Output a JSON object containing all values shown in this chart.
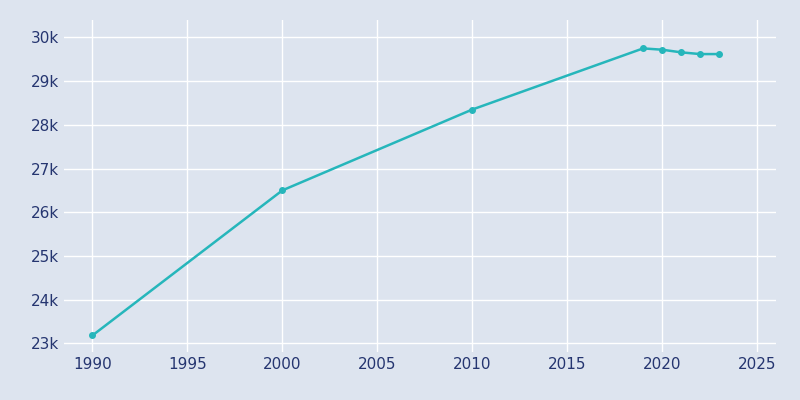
{
  "years": [
    1990,
    2000,
    2010,
    2019,
    2020,
    2021,
    2022,
    2023
  ],
  "population": [
    23180,
    26500,
    28350,
    29750,
    29720,
    29660,
    29620,
    29620
  ],
  "line_color": "#26b6bb",
  "bg_color": "#dde4ef",
  "grid_color": "#ffffff",
  "text_color": "#253570",
  "xlim": [
    1988.5,
    2026
  ],
  "ylim": [
    22800,
    30400
  ],
  "xticks": [
    1990,
    1995,
    2000,
    2005,
    2010,
    2015,
    2020,
    2025
  ],
  "yticks": [
    23000,
    24000,
    25000,
    26000,
    27000,
    28000,
    29000,
    30000
  ],
  "marker_years": [
    1990,
    2000,
    2010,
    2019,
    2020,
    2021,
    2022,
    2023
  ],
  "marker_pops": [
    23180,
    26500,
    28350,
    29750,
    29720,
    29660,
    29620,
    29620
  ],
  "tick_fontsize": 11
}
